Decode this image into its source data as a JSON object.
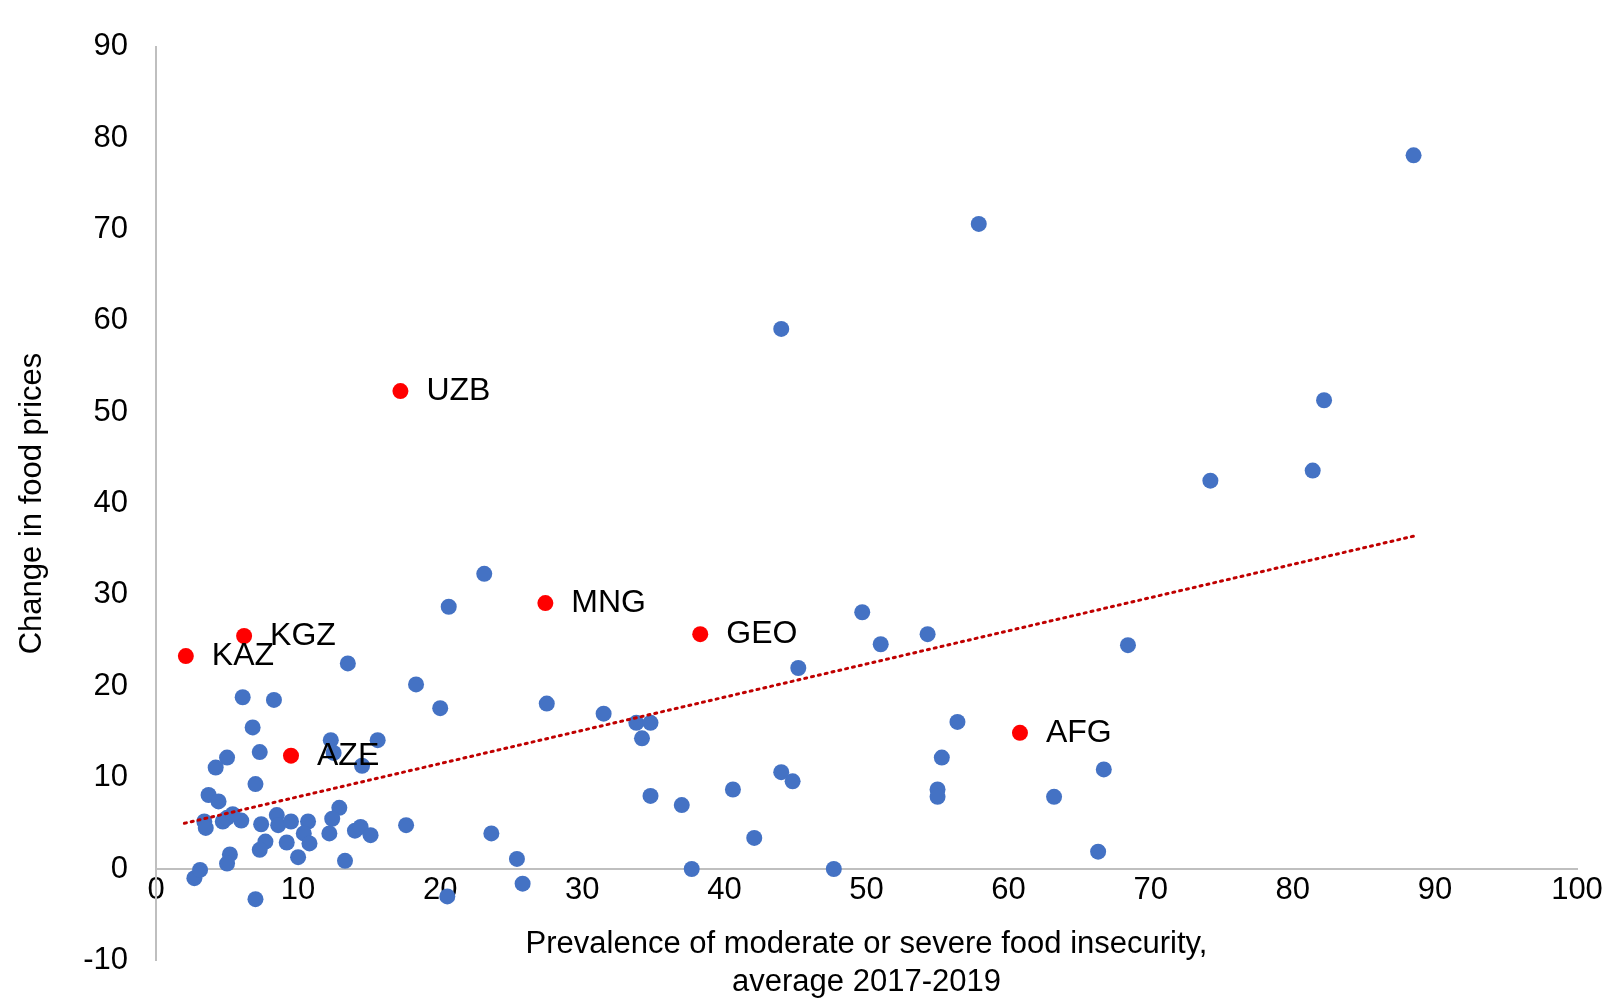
{
  "chart_data": {
    "type": "scatter",
    "xlabel": "Prevalence of moderate or severe food insecurity,\naverage 2017-2019",
    "ylabel": "Change in food prices",
    "xlim": [
      0,
      100
    ],
    "xticks": [
      0,
      10,
      20,
      30,
      40,
      50,
      60,
      70,
      80,
      90,
      100
    ],
    "ylim": [
      -10,
      90
    ],
    "yticks": [
      -10,
      0,
      10,
      20,
      30,
      40,
      50,
      60,
      70,
      80,
      90
    ],
    "grid": false,
    "legend": false,
    "marker": "circle",
    "series": [
      {
        "color": "#4472c4",
        "x": [
          88.5,
          57.9,
          44.0,
          82.2,
          81.4,
          74.2,
          23.1,
          49.7,
          20.6,
          54.3,
          51.0,
          68.4,
          13.5,
          45.2,
          6.1,
          8.3,
          18.3,
          20.0,
          27.5,
          31.5,
          33.8,
          34.8,
          34.2,
          56.4,
          55.3,
          6.8,
          15.6,
          12.3,
          12.5,
          7.3,
          5.0,
          14.5,
          4.2,
          7.0,
          3.7,
          4.4,
          12.9,
          34.8,
          37.0,
          40.6,
          44.0,
          44.8,
          55.0,
          55.0,
          63.2,
          66.7,
          66.3,
          23.6,
          17.6,
          42.1,
          25.4,
          25.8,
          37.7,
          47.7,
          20.5,
          7.0,
          2.7,
          3.1,
          3.4,
          3.5,
          4.7,
          5.0,
          6.0,
          5.4,
          7.4,
          8.5,
          8.6,
          9.5,
          10.7,
          12.4,
          12.2,
          10.4,
          10.8,
          9.2,
          7.7,
          7.3,
          10.0,
          13.3,
          14.0,
          14.4,
          15.1,
          5.2,
          5.0
        ],
        "values": [
          78.1,
          70.6,
          59.1,
          51.3,
          43.6,
          42.5,
          32.3,
          28.1,
          28.7,
          25.7,
          24.6,
          24.5,
          22.5,
          22.0,
          18.8,
          18.5,
          20.2,
          17.6,
          18.1,
          17.0,
          16.0,
          16.0,
          14.3,
          16.1,
          12.2,
          15.5,
          14.1,
          14.1,
          12.7,
          12.8,
          12.2,
          11.3,
          11.1,
          9.3,
          8.1,
          7.4,
          6.7,
          8.0,
          7.0,
          8.7,
          10.6,
          9.6,
          8.7,
          7.9,
          7.9,
          10.9,
          1.9,
          3.9,
          4.8,
          3.4,
          1.1,
          -1.6,
          0,
          0,
          -3.0,
          -3.3,
          -1.0,
          -0.1,
          5.2,
          4.5,
          5.2,
          5.6,
          5.3,
          6.0,
          4.9,
          5.9,
          4.8,
          5.2,
          5.2,
          5.5,
          3.9,
          3.9,
          2.8,
          2.9,
          3.0,
          2.1,
          1.3,
          0.9,
          4.2,
          4.6,
          3.7,
          1.6,
          0.6
        ]
      },
      {
        "color": "#ff0000",
        "x": [
          2.1,
          6.2,
          9.5,
          17.2,
          27.4,
          38.3,
          60.8
        ],
        "values": [
          23.3,
          25.5,
          12.4,
          52.3,
          29.1,
          25.7,
          14.9
        ]
      },
      {
        "type": "line",
        "color": "#c00000",
        "line_style": "dotted",
        "marker": "none",
        "x": [
          2.0,
          88.7
        ],
        "values": [
          5.0,
          36.5
        ]
      }
    ],
    "annotations": [
      {
        "text": "KAZ",
        "x": 2.1,
        "y": 23.3
      },
      {
        "text": "KGZ",
        "x": 6.2,
        "y": 25.5
      },
      {
        "text": "AZE",
        "x": 9.5,
        "y": 12.4
      },
      {
        "text": "UZB",
        "x": 17.2,
        "y": 52.3
      },
      {
        "text": "MNG",
        "x": 27.4,
        "y": 29.1
      },
      {
        "text": "GEO",
        "x": 38.3,
        "y": 25.7
      },
      {
        "text": "AFG",
        "x": 60.8,
        "y": 14.9
      }
    ]
  }
}
